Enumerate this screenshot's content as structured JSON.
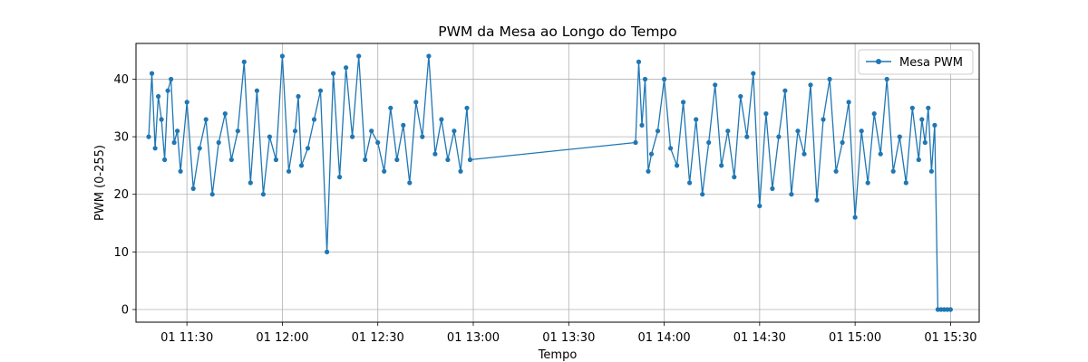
{
  "chart_data": {
    "type": "line",
    "title": "PWM da Mesa ao Longo do Tempo",
    "xlabel": "Tempo",
    "ylabel": "PWM (0-255)",
    "xlim": [
      "01 11:14",
      "01 15:39"
    ],
    "ylim": [
      -2.2,
      46.2
    ],
    "x_ticks": [
      "01 11:30",
      "01 12:00",
      "01 12:30",
      "01 13:00",
      "01 13:30",
      "01 14:00",
      "01 14:30",
      "01 15:00",
      "01 15:30"
    ],
    "y_ticks": [
      0,
      10,
      20,
      30,
      40
    ],
    "grid": true,
    "legend_position": "top-right",
    "series": [
      {
        "name": "Mesa PWM",
        "color": "#1f77b4",
        "marker": "circle",
        "x": [
          "01 11:18",
          "01 11:19",
          "01 11:20",
          "01 11:21",
          "01 11:22",
          "01 11:23",
          "01 11:24",
          "01 11:25",
          "01 11:26",
          "01 11:27",
          "01 11:28",
          "01 11:30",
          "01 11:32",
          "01 11:34",
          "01 11:36",
          "01 11:38",
          "01 11:40",
          "01 11:42",
          "01 11:44",
          "01 11:46",
          "01 11:48",
          "01 11:50",
          "01 11:52",
          "01 11:54",
          "01 11:56",
          "01 11:58",
          "01 12:00",
          "01 12:02",
          "01 12:04",
          "01 12:05",
          "01 12:06",
          "01 12:08",
          "01 12:10",
          "01 12:12",
          "01 12:14",
          "01 12:16",
          "01 12:18",
          "01 12:20",
          "01 12:22",
          "01 12:24",
          "01 12:26",
          "01 12:28",
          "01 12:30",
          "01 12:32",
          "01 12:34",
          "01 12:36",
          "01 12:38",
          "01 12:40",
          "01 12:42",
          "01 12:44",
          "01 12:46",
          "01 12:48",
          "01 12:50",
          "01 12:52",
          "01 12:54",
          "01 12:56",
          "01 12:58",
          "01 12:59",
          "01 13:51",
          "01 13:52",
          "01 13:53",
          "01 13:54",
          "01 13:55",
          "01 13:56",
          "01 13:58",
          "01 14:00",
          "01 14:02",
          "01 14:04",
          "01 14:06",
          "01 14:08",
          "01 14:10",
          "01 14:12",
          "01 14:14",
          "01 14:16",
          "01 14:18",
          "01 14:20",
          "01 14:22",
          "01 14:24",
          "01 14:26",
          "01 14:28",
          "01 14:30",
          "01 14:32",
          "01 14:34",
          "01 14:36",
          "01 14:38",
          "01 14:40",
          "01 14:42",
          "01 14:44",
          "01 14:46",
          "01 14:48",
          "01 14:50",
          "01 14:52",
          "01 14:54",
          "01 14:56",
          "01 14:58",
          "01 15:00",
          "01 15:02",
          "01 15:04",
          "01 15:06",
          "01 15:08",
          "01 15:10",
          "01 15:12",
          "01 15:14",
          "01 15:16",
          "01 15:18",
          "01 15:20",
          "01 15:21",
          "01 15:22",
          "01 15:23",
          "01 15:24",
          "01 15:25",
          "01 15:26",
          "01 15:27",
          "01 15:28",
          "01 15:29",
          "01 15:30"
        ],
        "y": [
          30,
          41,
          28,
          37,
          33,
          26,
          38,
          40,
          29,
          31,
          24,
          36,
          21,
          28,
          33,
          20,
          29,
          34,
          26,
          31,
          43,
          22,
          38,
          20,
          30,
          26,
          44,
          24,
          31,
          37,
          25,
          28,
          33,
          38,
          10,
          41,
          23,
          42,
          30,
          44,
          26,
          31,
          29,
          24,
          35,
          26,
          32,
          22,
          36,
          30,
          44,
          27,
          33,
          26,
          31,
          24,
          35,
          26,
          29,
          43,
          32,
          40,
          24,
          27,
          31,
          40,
          28,
          25,
          36,
          22,
          33,
          20,
          29,
          39,
          25,
          31,
          23,
          37,
          30,
          41,
          18,
          34,
          21,
          30,
          38,
          20,
          31,
          27,
          39,
          19,
          33,
          40,
          24,
          29,
          36,
          16,
          31,
          22,
          34,
          27,
          40,
          24,
          30,
          22,
          35,
          26,
          33,
          29,
          35,
          24,
          32,
          0,
          0,
          0,
          0,
          0
        ]
      }
    ]
  }
}
